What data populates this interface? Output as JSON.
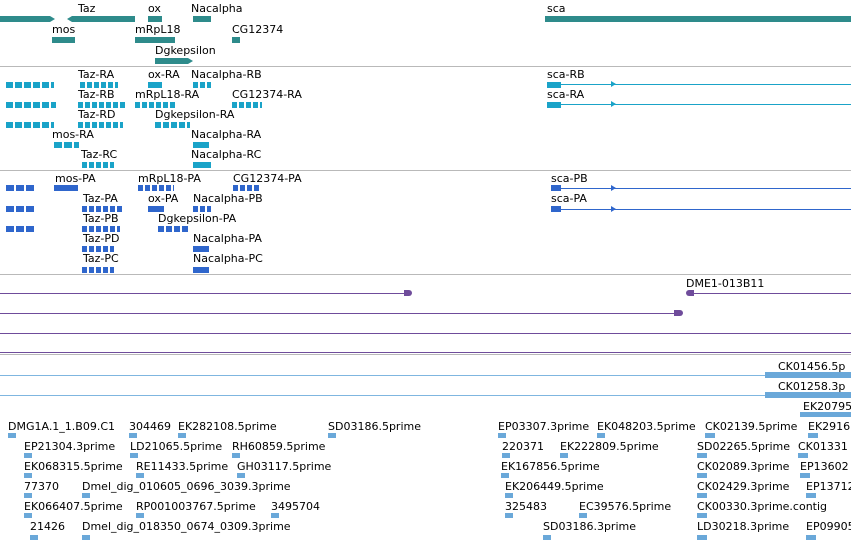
{
  "colors": {
    "gene": "#2e8b8b",
    "mrna": "#1aa3c8",
    "protein": "#2f66cc",
    "clone": "#6f4c9b",
    "est": "#6aa8d9",
    "est_line": "#7fb6e0",
    "separator": "#b9b9b9"
  },
  "tracks": {
    "genes": {
      "labels": [
        "Taz",
        "ox",
        "Nacalpha",
        "sca",
        "mos",
        "mRpL18",
        "CG12374",
        "Dgkepsilon"
      ]
    },
    "transcripts": {
      "labels": [
        "Taz-RA",
        "ox-RA",
        "Nacalpha-RB",
        "sca-RB",
        "Taz-RB",
        "mRpL18-RA",
        "CG12374-RA",
        "sca-RA",
        "Taz-RD",
        "Dgkepsilon-RA",
        "mos-RA",
        "Nacalpha-RA",
        "Taz-RC",
        "Nacalpha-RC"
      ]
    },
    "proteins": {
      "labels": [
        "mos-PA",
        "mRpL18-PA",
        "CG12374-PA",
        "sca-PB",
        "Taz-PA",
        "ox-PA",
        "Nacalpha-PB",
        "sca-PA",
        "Taz-PB",
        "Dgkepsilon-PA",
        "Taz-PD",
        "Nacalpha-PA",
        "Taz-PC",
        "Nacalpha-PC"
      ]
    },
    "clones": {
      "labels": [
        "DME1-013B11"
      ]
    },
    "ests_top": {
      "labels": [
        "CK01456.5p",
        "CK01258.3p",
        "EK20795"
      ]
    },
    "ests": {
      "labels": [
        "DMG1A.1_1.B09.C1",
        "304469",
        "EK282108.5prime",
        "SD03186.5prime",
        "EP03307.3prime",
        "EK048203.5prime",
        "CK02139.5prime",
        "EK2916",
        "EP21304.3prime",
        "LD21065.5prime",
        "RH60859.5prime",
        "220371",
        "EK222809.5prime",
        "SD02265.5prime",
        "CK01331",
        "EK068315.5prime",
        "RE11433.5prime",
        "GH03117.5prime",
        "EK167856.5prime",
        "CK02089.3prime",
        "EP13602",
        "77370",
        "Dmel_dig_010605_0696_3039.3prime",
        "EK206449.5prime",
        "CK02429.3prime",
        "EP13712",
        "EK066407.5prime",
        "RP001003767.5prime",
        "3495704",
        "325483",
        "EC39576.5prime",
        "CK00330.3prime.contig",
        "21426",
        "Dmel_dig_018350_0674_0309.3prime",
        "SD03186.3prime",
        "LD30218.3prime",
        "EP09905"
      ]
    }
  }
}
